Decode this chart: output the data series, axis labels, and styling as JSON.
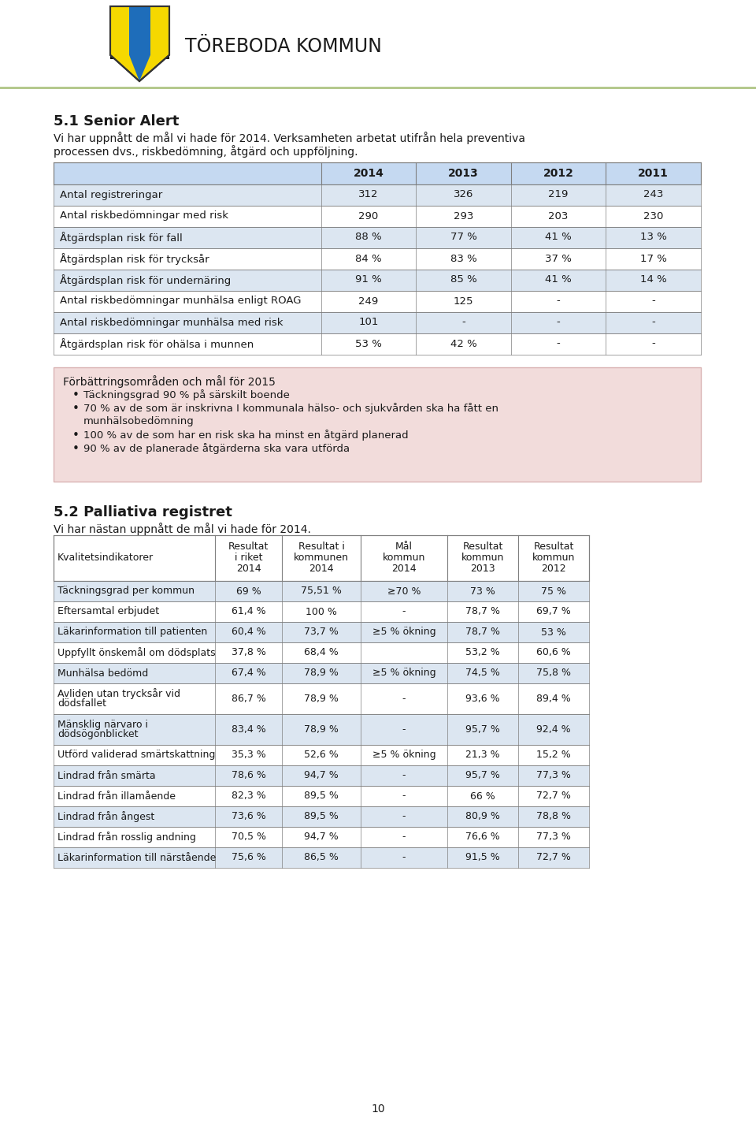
{
  "header_line_color": "#b8cc8a",
  "page_bg": "#ffffff",
  "section1_title": "5.1 Senior Alert",
  "section1_intro_line1": "Vi har uppnått de mål vi hade för 2014. Verksamheten arbetat utifrån hela preventiva",
  "section1_intro_line2": "processen dvs., riskbedömning, åtgärd och uppföljning.",
  "table1_headers": [
    "",
    "2014",
    "2013",
    "2012",
    "2011"
  ],
  "table1_header_bg": "#c5d9f1",
  "table1_row_bg_odd": "#dce6f1",
  "table1_row_bg_even": "#ffffff",
  "table1_rows": [
    [
      "Antal registreringar",
      "312",
      "326",
      "219",
      "243"
    ],
    [
      "Antal riskbedömningar med risk",
      "290",
      "293",
      "203",
      "230"
    ],
    [
      "Åtgärdsplan risk för fall",
      "88 %",
      "77 %",
      "41 %",
      "13 %"
    ],
    [
      "Åtgärdsplan risk för trycksår",
      "84 %",
      "83 %",
      "37 %",
      "17 %"
    ],
    [
      "Åtgärdsplan risk för undernäring",
      "91 %",
      "85 %",
      "41 %",
      "14 %"
    ],
    [
      "Antal riskbedömningar munhälsa enligt ROAG",
      "249",
      "125",
      "-",
      "-"
    ],
    [
      "Antal riskbedömningar munhälsa med risk",
      "101",
      "-",
      "-",
      "-"
    ],
    [
      "Åtgärdsplan risk för ohälsa i munnen",
      "53 %",
      "42 %",
      "-",
      "-"
    ]
  ],
  "box_title": "Förbättringsområden och mål för 2015",
  "box_bg": "#f2dcdb",
  "box_border": "#d9b3b3",
  "box_bullets": [
    [
      "Täckningsgrad 90 % på särskilt boende"
    ],
    [
      "70 % av de som är inskrivna I kommunala hälso- och sjukvården ska ha fått en",
      "munhälsobedömning"
    ],
    [
      "100 % av de som har en risk ska ha minst en åtgärd planerad"
    ],
    [
      "90 % av de planerade åtgärderna ska vara utförda"
    ]
  ],
  "section2_title": "5.2 Palliativa registret",
  "section2_intro": "Vi har nästan uppnått de mål vi hade för 2014.",
  "table2_col_headers": [
    "Kvalitetsindikatorer",
    "Resultat\ni riket\n2014",
    "Resultat i\nkommunen\n2014",
    "Mål\nkommun\n2014",
    "Resultat\nkommun\n2013",
    "Resultat\nkommun\n2012"
  ],
  "table2_row_bg_odd": "#dce6f1",
  "table2_row_bg_even": "#ffffff",
  "table2_rows": [
    [
      "Täckningsgrad per kommun",
      "69 %",
      "75,51 %",
      "≥70 %",
      "73 %",
      "75 %"
    ],
    [
      "Eftersamtal erbjudet",
      "61,4 %",
      "100 %",
      "-",
      "78,7 %",
      "69,7 %"
    ],
    [
      "Läkarinformation till patienten",
      "60,4 %",
      "73,7 %",
      "≥5 % ökning",
      "78,7 %",
      "53 %"
    ],
    [
      "Uppfyllt önskemål om dödsplats",
      "37,8 %",
      "68,4 %",
      "",
      "53,2 %",
      "60,6 %"
    ],
    [
      "Munhälsa bedömd",
      "67,4 %",
      "78,9 %",
      "≥5 % ökning",
      "74,5 %",
      "75,8 %"
    ],
    [
      "Avliden utan trycksår vid\ndödsfallet",
      "86,7 %",
      "78,9 %",
      "-",
      "93,6 %",
      "89,4 %"
    ],
    [
      "Mänsklig närvaro i\ndödsögonblicket",
      "83,4 %",
      "78,9 %",
      "-",
      "95,7 %",
      "92,4 %"
    ],
    [
      "Utförd validerad smärtskattning",
      "35,3 %",
      "52,6 %",
      "≥5 % ökning",
      "21,3 %",
      "15,2 %"
    ],
    [
      "Lindrad från smärta",
      "78,6 %",
      "94,7 %",
      "-",
      "95,7 %",
      "77,3 %"
    ],
    [
      "Lindrad från illamående",
      "82,3 %",
      "89,5 %",
      "-",
      "66 %",
      "72,7 %"
    ],
    [
      "Lindrad från ångest",
      "73,6 %",
      "89,5 %",
      "-",
      "80,9 %",
      "78,8 %"
    ],
    [
      "Lindrad från rosslig andning",
      "70,5 %",
      "94,7 %",
      "-",
      "76,6 %",
      "77,3 %"
    ],
    [
      "Läkarinformation till närstående",
      "75,6 %",
      "86,5 %",
      "-",
      "91,5 %",
      "72,7 %"
    ]
  ],
  "page_number": "10",
  "text_color": "#1a1a1a",
  "border_color": "#7f7f7f"
}
